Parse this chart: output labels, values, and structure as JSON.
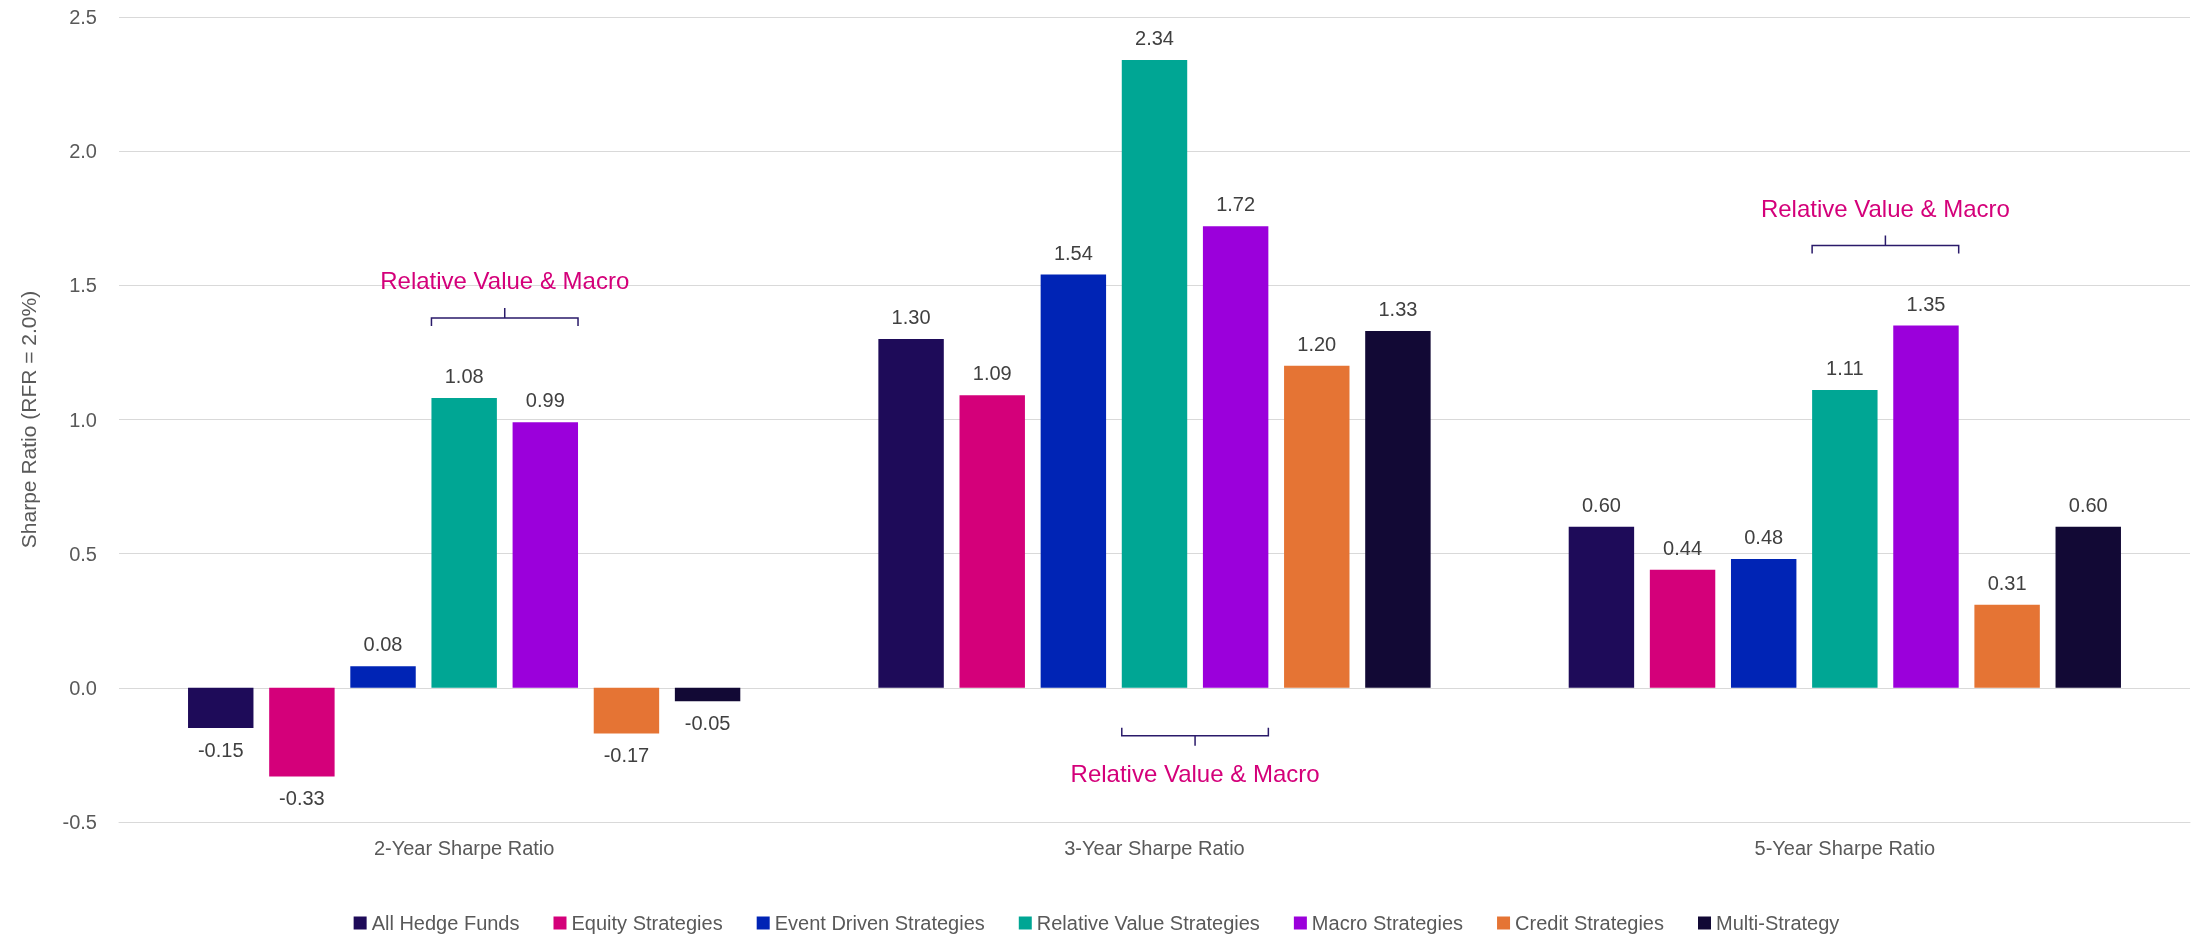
{
  "chart_data": {
    "type": "bar",
    "ylabel": "Sharpe Ratio (RFR = 2.0%)",
    "categories": [
      "2-Year Sharpe Ratio",
      "3-Year Sharpe Ratio",
      "5-Year Sharpe Ratio"
    ],
    "series": [
      {
        "name": "All Hedge Funds",
        "color": "#1e0b59",
        "values": [
          -0.15,
          1.3,
          0.6
        ],
        "value_labels": [
          "-0.15",
          "1.30",
          "0.60"
        ]
      },
      {
        "name": "Equity Strategies",
        "color": "#d4007a",
        "values": [
          -0.33,
          1.09,
          0.44
        ],
        "value_labels": [
          "-0.33",
          "1.09",
          "0.44"
        ]
      },
      {
        "name": "Event Driven Strategies",
        "color": "#0024b5",
        "values": [
          0.08,
          1.54,
          0.48
        ],
        "value_labels": [
          "0.08",
          "1.54",
          "0.48"
        ]
      },
      {
        "name": "Relative Value Strategies",
        "color": "#00a694",
        "values": [
          1.08,
          2.34,
          1.11
        ],
        "value_labels": [
          "1.08",
          "2.34",
          "1.11"
        ]
      },
      {
        "name": "Macro Strategies",
        "color": "#9b00db",
        "values": [
          0.99,
          1.72,
          1.35
        ],
        "value_labels": [
          "0.99",
          "1.72",
          "1.35"
        ]
      },
      {
        "name": "Credit Strategies",
        "color": "#e57434",
        "values": [
          -0.17,
          1.2,
          0.31
        ],
        "value_labels": [
          "-0.17",
          "1.20",
          "0.31"
        ]
      },
      {
        "name": "Multi-Strategy",
        "color": "#120935",
        "values": [
          -0.05,
          1.33,
          0.6
        ],
        "value_labels": [
          "-0.05",
          "1.33",
          "0.60"
        ]
      }
    ],
    "ylim": [
      -0.5,
      2.5
    ],
    "yticks": [
      {
        "value": -0.5,
        "label": "-0.5"
      },
      {
        "value": 0,
        "label": "0.0"
      },
      {
        "value": 0.5,
        "label": "0.5"
      },
      {
        "value": 1,
        "label": "1.0"
      },
      {
        "value": 1.5,
        "label": "1.5"
      },
      {
        "value": 2,
        "label": "2.0"
      },
      {
        "value": 2.5,
        "label": "2.5"
      }
    ],
    "grid": "y",
    "legend": "bottom",
    "annotations": [
      "Relative Value & Macro",
      "Relative Value & Macro",
      "Relative Value & Macro"
    ]
  }
}
